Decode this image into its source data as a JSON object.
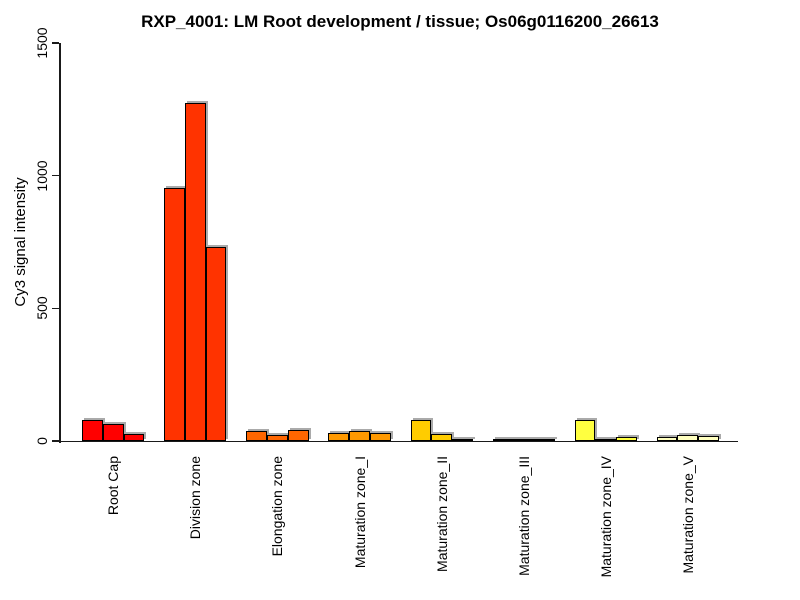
{
  "chart_data": {
    "type": "bar",
    "title": "RXP_4001: LM Root development / tissue; Os06g0116200_26613",
    "xlabel": "",
    "ylabel": "Cy3 signal intensity",
    "ylim": [
      0,
      1500
    ],
    "yticks": [
      0,
      500,
      1000,
      1500
    ],
    "grid": false,
    "legend": "none",
    "bars_per_category": 3,
    "bar_border_color": "#000000",
    "bar_shadow_color": "#aaaaaa",
    "categories": [
      "Root Cap",
      "Division zone",
      "Elongation zone",
      "Maturation zone_I",
      "Maturation zone_II",
      "Maturation zone_III",
      "Maturation zone_IV",
      "Maturation zone_V"
    ],
    "group_colors": [
      "#FF0000",
      "#FF3300",
      "#FF6600",
      "#FF9900",
      "#FFCC00",
      "#FFFF00",
      "#FFFF40",
      "#FFFFBF"
    ],
    "values": [
      [
        80,
        65,
        28
      ],
      [
        955,
        1273,
        731
      ],
      [
        38,
        24,
        41
      ],
      [
        30,
        38,
        32
      ],
      [
        78,
        25,
        9
      ],
      [
        4,
        5,
        4
      ],
      [
        78,
        5,
        14
      ],
      [
        15,
        23,
        17
      ]
    ]
  }
}
